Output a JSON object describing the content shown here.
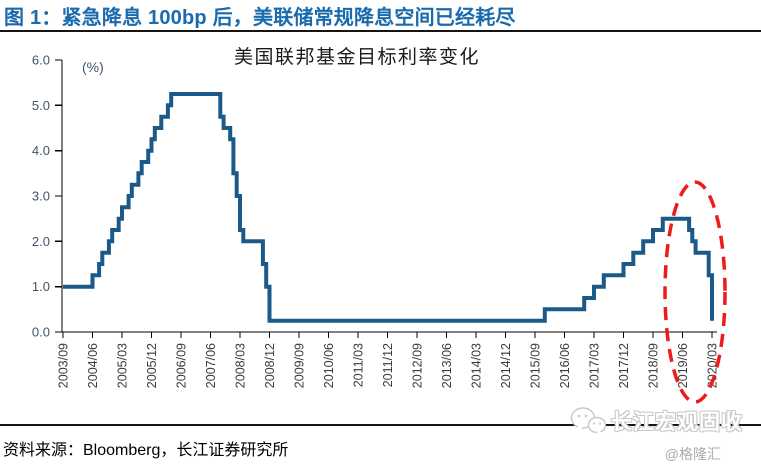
{
  "header": {
    "title": "图 1：紧急降息 100bp 后，美联储常规降息空间已经耗尽"
  },
  "chart_data": {
    "type": "line",
    "line_style": "step",
    "title": "美国联邦基金目标利率变化",
    "unit_label": "(%)",
    "ylim": [
      0.0,
      6.0
    ],
    "ytick_labels": [
      "0.0",
      "1.0",
      "2.0",
      "3.0",
      "4.0",
      "5.0",
      "6.0"
    ],
    "xtick_labels": [
      "2003/09",
      "2004/06",
      "2005/03",
      "2005/12",
      "2006/09",
      "2007/06",
      "2008/03",
      "2008/12",
      "2009/09",
      "2010/06",
      "2011/03",
      "2011/12",
      "2012/09",
      "2013/06",
      "2014/03",
      "2014/12",
      "2015/09",
      "2016/06",
      "2017/03",
      "2017/12",
      "2018/09",
      "2019/06",
      "2020/03"
    ],
    "x_months_between_ticks": 9,
    "grid": false,
    "legend": false,
    "series": [
      {
        "name": "美国联邦基金目标利率",
        "color": "#1B5A88",
        "point_format": "[months_since_2003/09, rate_pct]",
        "points": [
          [
            0,
            1.0
          ],
          [
            9,
            1.25
          ],
          [
            11,
            1.5
          ],
          [
            12,
            1.75
          ],
          [
            14,
            2.0
          ],
          [
            15,
            2.25
          ],
          [
            17,
            2.5
          ],
          [
            18,
            2.75
          ],
          [
            20,
            3.0
          ],
          [
            21,
            3.25
          ],
          [
            23,
            3.5
          ],
          [
            24,
            3.75
          ],
          [
            26,
            4.0
          ],
          [
            27,
            4.25
          ],
          [
            28,
            4.5
          ],
          [
            30,
            4.75
          ],
          [
            32,
            5.0
          ],
          [
            33,
            5.25
          ],
          [
            48,
            4.75
          ],
          [
            49,
            4.5
          ],
          [
            51,
            4.25
          ],
          [
            52,
            3.5
          ],
          [
            53,
            3.0
          ],
          [
            54,
            2.25
          ],
          [
            55,
            2.0
          ],
          [
            61,
            1.5
          ],
          [
            62,
            1.0
          ],
          [
            63,
            0.25
          ],
          [
            147,
            0.5
          ],
          [
            159,
            0.75
          ],
          [
            162,
            1.0
          ],
          [
            165,
            1.25
          ],
          [
            171,
            1.5
          ],
          [
            174,
            1.75
          ],
          [
            177,
            2.0
          ],
          [
            180,
            2.25
          ],
          [
            183,
            2.5
          ],
          [
            191,
            2.25
          ],
          [
            192,
            2.0
          ],
          [
            193,
            1.75
          ],
          [
            197,
            1.25
          ],
          [
            198,
            0.25
          ]
        ]
      }
    ],
    "annotation": {
      "shape": "dashed-ellipse",
      "color": "#EE1B1B",
      "highlights": "2019/06–2020/03"
    }
  },
  "footer": {
    "source": "资料来源：Bloomberg，长江证券研究所"
  },
  "watermark": {
    "brand": "长江宏观固收",
    "handle": "@格隆汇",
    "icon": "chat-bubbles-icon"
  }
}
